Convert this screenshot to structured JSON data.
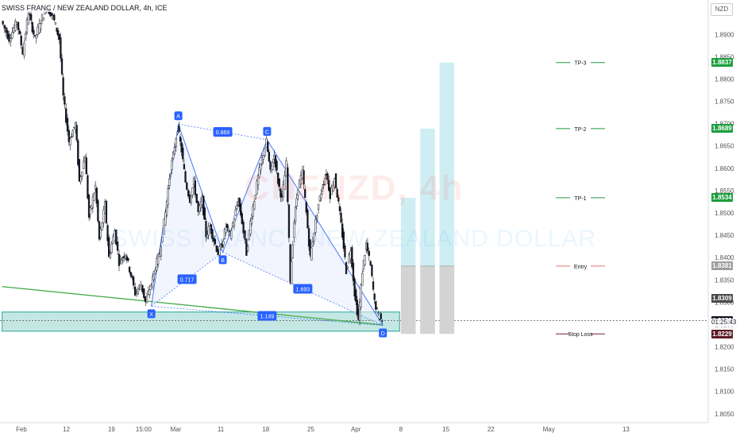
{
  "header": {
    "title": "SWISS FRANC / NEW ZEALAND DOLLAR, 4h, ICE",
    "currency": "NZD"
  },
  "watermark": {
    "symbol": "CHFNZD, 4h",
    "name": "SWISS FRANC / NEW ZEALAND DOLLAR"
  },
  "colors": {
    "candle": "#131722",
    "harmonic": "#2962ff",
    "harmonic_fill": "#e8ecfb",
    "support_zone": "#b2dfdb",
    "support_border": "#26a69a",
    "trendline": "#4caf50",
    "target_fill": "#cfeef4",
    "risk_fill": "#d3d3d3",
    "tp_line": "#1b9e3e",
    "entry_line": "#e57373",
    "stop_line": "#7b1f2e",
    "last_price": "#131722"
  },
  "chart_data": {
    "type": "candlestick",
    "instrument": "CHFNZD",
    "timeframe": "4h",
    "ylim": [
      1.803,
      1.897
    ],
    "y_ticks": [
      1.805,
      1.81,
      1.815,
      1.82,
      1.825,
      1.83,
      1.835,
      1.84,
      1.845,
      1.85,
      1.855,
      1.86,
      1.865,
      1.87,
      1.875,
      1.88,
      1.885,
      1.89
    ],
    "x_ticks": [
      {
        "label": "Feb",
        "x": 0
      },
      {
        "label": "12",
        "x": 7
      },
      {
        "label": "19",
        "x": 14
      },
      {
        "label": "15:00",
        "x": 19
      },
      {
        "label": "Mar",
        "x": 24
      },
      {
        "label": "11",
        "x": 31
      },
      {
        "label": "18",
        "x": 38
      },
      {
        "label": "25",
        "x": 45
      },
      {
        "label": "Apr",
        "x": 52
      },
      {
        "label": "8",
        "x": 59
      },
      {
        "label": "15",
        "x": 66
      },
      {
        "label": "22",
        "x": 73
      },
      {
        "label": "May",
        "x": 82
      },
      {
        "label": "13",
        "x": 94
      }
    ],
    "price_path": [
      [
        -3.0,
        1.893
      ],
      [
        -1.8,
        1.889
      ],
      [
        -0.6,
        1.893
      ],
      [
        0.3,
        1.886
      ],
      [
        1.2,
        1.895
      ],
      [
        2.2,
        1.889
      ],
      [
        3.1,
        1.893
      ],
      [
        4.0,
        1.896
      ],
      [
        5.0,
        1.894
      ],
      [
        6.0,
        1.889
      ],
      [
        6.6,
        1.876
      ],
      [
        7.5,
        1.866
      ],
      [
        8.5,
        1.87
      ],
      [
        9.1,
        1.857
      ],
      [
        10.0,
        1.863
      ],
      [
        10.6,
        1.849
      ],
      [
        11.6,
        1.856
      ],
      [
        12.2,
        1.844
      ],
      [
        13.1,
        1.852
      ],
      [
        13.7,
        1.84
      ],
      [
        14.6,
        1.846
      ],
      [
        15.3,
        1.839
      ],
      [
        16.3,
        1.841
      ],
      [
        17.3,
        1.835
      ],
      [
        17.8,
        1.832
      ],
      [
        18.7,
        1.834
      ],
      [
        19.4,
        1.83
      ],
      [
        20.3,
        1.834
      ],
      [
        20.9,
        1.838
      ],
      [
        21.6,
        1.841
      ],
      [
        22.5,
        1.85
      ],
      [
        23.1,
        1.858
      ],
      [
        23.7,
        1.863
      ],
      [
        24.4,
        1.869
      ],
      [
        25.0,
        1.864
      ],
      [
        25.6,
        1.857
      ],
      [
        26.3,
        1.853
      ],
      [
        26.9,
        1.857
      ],
      [
        27.6,
        1.85
      ],
      [
        28.2,
        1.853
      ],
      [
        28.8,
        1.845
      ],
      [
        29.4,
        1.847
      ],
      [
        30.0,
        1.844
      ],
      [
        30.7,
        1.841
      ],
      [
        31.3,
        1.843
      ],
      [
        31.9,
        1.847
      ],
      [
        32.5,
        1.845
      ],
      [
        33.2,
        1.849
      ],
      [
        33.8,
        1.853
      ],
      [
        34.4,
        1.848
      ],
      [
        35.1,
        1.841
      ],
      [
        35.7,
        1.848
      ],
      [
        36.3,
        1.853
      ],
      [
        36.9,
        1.858
      ],
      [
        37.5,
        1.862
      ],
      [
        38.2,
        1.866
      ],
      [
        38.8,
        1.859
      ],
      [
        39.4,
        1.863
      ],
      [
        40.0,
        1.857
      ],
      [
        40.6,
        1.853
      ],
      [
        41.3,
        1.861
      ],
      [
        41.9,
        1.835
      ],
      [
        42.5,
        1.848
      ],
      [
        43.1,
        1.856
      ],
      [
        43.8,
        1.859
      ],
      [
        44.4,
        1.85
      ],
      [
        45.0,
        1.84
      ],
      [
        45.6,
        1.846
      ],
      [
        46.3,
        1.852
      ],
      [
        46.9,
        1.856
      ],
      [
        47.5,
        1.859
      ],
      [
        48.1,
        1.854
      ],
      [
        48.8,
        1.858
      ],
      [
        49.4,
        1.852
      ],
      [
        50.0,
        1.845
      ],
      [
        50.6,
        1.837
      ],
      [
        51.3,
        1.842
      ],
      [
        51.9,
        1.832
      ],
      [
        52.5,
        1.826
      ],
      [
        53.1,
        1.837
      ],
      [
        53.7,
        1.843
      ],
      [
        54.4,
        1.838
      ],
      [
        55.0,
        1.83
      ],
      [
        55.6,
        1.827
      ],
      [
        56.2,
        1.8259
      ]
    ],
    "support_zone": {
      "low": 1.8235,
      "high": 1.8278,
      "x0": -3,
      "x1": 58.8
    },
    "trendline": {
      "x0": -3,
      "y0": 1.8335,
      "x1": 56.2,
      "y1": 1.8249
    },
    "harmonic": {
      "points": [
        {
          "label": "X",
          "x": 20.2,
          "y": 1.8291
        },
        {
          "label": "A",
          "x": 24.4,
          "y": 1.8699
        },
        {
          "label": "B",
          "x": 31.3,
          "y": 1.8412
        },
        {
          "label": "C",
          "x": 38.2,
          "y": 1.8664
        },
        {
          "label": "D",
          "x": 56.2,
          "y": 1.8248
        }
      ],
      "ratios": [
        {
          "label": "0.869",
          "from": "A",
          "to": "C"
        },
        {
          "label": "0.717",
          "from": "X",
          "to": "B"
        },
        {
          "label": "1.693",
          "from": "B",
          "to": "D"
        },
        {
          "label": "1.149",
          "from": "X",
          "to": "D"
        }
      ]
    },
    "trade_levels": [
      {
        "label": "TP-3",
        "price": 1.8837,
        "kind": "target"
      },
      {
        "label": "TP-2",
        "price": 1.8689,
        "kind": "target"
      },
      {
        "label": "TP-1",
        "price": 1.8534,
        "kind": "target"
      },
      {
        "label": "Entry",
        "price": 1.8381,
        "kind": "entry"
      },
      {
        "label": "Stop Loss",
        "price": 1.8229,
        "kind": "stop"
      }
    ],
    "position_boxes": [
      {
        "x0": 59.0,
        "x1": 61.3,
        "target": 1.8534,
        "entry": 1.8381,
        "stop": 1.8229
      },
      {
        "x0": 62.0,
        "x1": 64.3,
        "target": 1.8689,
        "entry": 1.8381,
        "stop": 1.8229
      },
      {
        "x0": 65.0,
        "x1": 67.3,
        "target": 1.8837,
        "entry": 1.8381,
        "stop": 1.8229
      }
    ],
    "price_labels": [
      {
        "value": "1.8837",
        "price": 1.8837,
        "color": "#1b9e3e"
      },
      {
        "value": "1.8689",
        "price": 1.8689,
        "color": "#1b9e3e"
      },
      {
        "value": "1.8534",
        "price": 1.8534,
        "color": "#1b9e3e"
      },
      {
        "value": "1.8381",
        "price": 1.8381,
        "color": "#9e9e9e"
      },
      {
        "value": "1.8309",
        "price": 1.8309,
        "color": "#4a4a4a"
      },
      {
        "value": "1.8259",
        "price": 1.8259,
        "color": "#131722"
      },
      {
        "value": "1.8229",
        "price": 1.8229,
        "color": "#5d1a25"
      }
    ],
    "last_price": 1.8259,
    "countdown": "01:25:43"
  }
}
